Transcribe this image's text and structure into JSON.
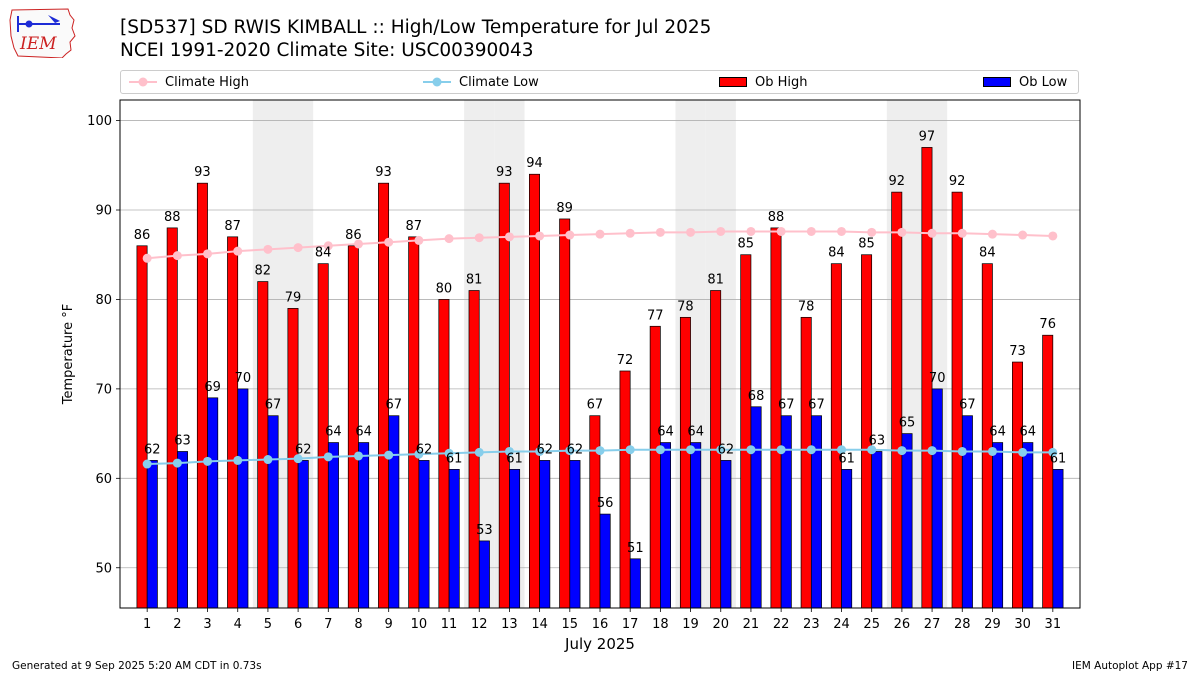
{
  "header": {
    "title_line1": "[SD537] SD RWIS KIMBALL :: High/Low Temperature for Jul 2025",
    "title_line2": "NCEI 1991-2020 Climate Site: USC00390043",
    "logo_text": "IEM"
  },
  "colors": {
    "climate_high": "#ffc0cb",
    "climate_low": "#87ceeb",
    "ob_high": "#ff0000",
    "ob_low": "#0000ff",
    "weekend_shade": "#eeeeee",
    "grid": "#b0b0b0"
  },
  "footer": {
    "left": "Generated at 9 Sep 2025 5:20 AM CDT in 0.73s",
    "right": "IEM Autoplot App #17"
  },
  "chart_data": {
    "type": "bar",
    "title": "[SD537] SD RWIS KIMBALL :: High/Low Temperature for Jul 2025",
    "subtitle": "NCEI 1991-2020 Climate Site: USC00390043",
    "xlabel": "July 2025",
    "ylabel": "Temperature °F",
    "ylim": [
      45.5,
      102.3
    ],
    "yticks": [
      50,
      60,
      70,
      80,
      90,
      100
    ],
    "grid": true,
    "legend_position": "top",
    "categories": [
      "1",
      "2",
      "3",
      "4",
      "5",
      "6",
      "7",
      "8",
      "9",
      "10",
      "11",
      "12",
      "13",
      "14",
      "15",
      "16",
      "17",
      "18",
      "19",
      "20",
      "21",
      "22",
      "23",
      "24",
      "25",
      "26",
      "27",
      "28",
      "29",
      "30",
      "31"
    ],
    "shaded_days": [
      5,
      6,
      12,
      13,
      19,
      20,
      26,
      27
    ],
    "series": [
      {
        "name": "Ob High",
        "kind": "bar",
        "values": [
          86,
          88,
          93,
          87,
          82,
          79,
          84,
          86,
          93,
          87,
          80,
          81,
          93,
          94,
          89,
          67,
          72,
          77,
          78,
          81,
          85,
          88,
          78,
          84,
          85,
          92,
          97,
          92,
          84,
          73,
          76
        ]
      },
      {
        "name": "Ob Low",
        "kind": "bar",
        "values": [
          62,
          63,
          69,
          70,
          67,
          62,
          64,
          64,
          67,
          62,
          61,
          53,
          61,
          62,
          62,
          56,
          51,
          64,
          64,
          62,
          68,
          67,
          67,
          61,
          63,
          65,
          70,
          67,
          64,
          64,
          61
        ]
      },
      {
        "name": "Climate High",
        "kind": "line",
        "values": [
          84.6,
          84.9,
          85.1,
          85.4,
          85.6,
          85.8,
          86.0,
          86.2,
          86.4,
          86.6,
          86.8,
          86.9,
          87.0,
          87.1,
          87.2,
          87.3,
          87.4,
          87.5,
          87.5,
          87.6,
          87.6,
          87.6,
          87.6,
          87.6,
          87.5,
          87.5,
          87.4,
          87.4,
          87.3,
          87.2,
          87.1
        ]
      },
      {
        "name": "Climate Low",
        "kind": "line",
        "values": [
          61.6,
          61.7,
          61.9,
          62.0,
          62.1,
          62.2,
          62.4,
          62.5,
          62.6,
          62.7,
          62.8,
          62.9,
          63.0,
          63.0,
          63.1,
          63.1,
          63.2,
          63.2,
          63.2,
          63.2,
          63.2,
          63.2,
          63.2,
          63.2,
          63.2,
          63.1,
          63.1,
          63.0,
          63.0,
          62.9,
          62.9
        ]
      }
    ],
    "legend": [
      "Climate High",
      "Climate Low",
      "Ob High",
      "Ob Low"
    ]
  }
}
